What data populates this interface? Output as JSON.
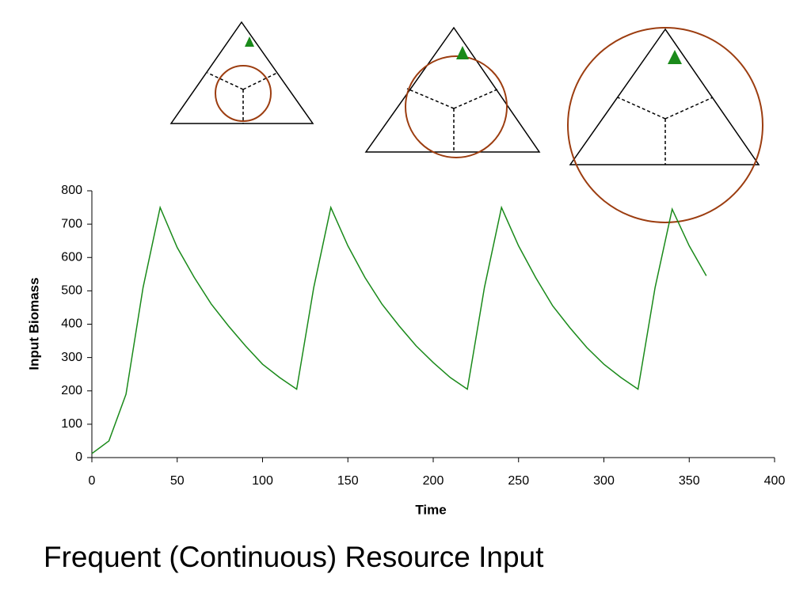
{
  "chart_data": {
    "type": "line",
    "title": "Frequent (Continuous) Resource Input",
    "x_label": "Time",
    "y_label": "Input Biomass",
    "x": [
      0,
      10,
      20,
      30,
      40,
      50,
      60,
      70,
      80,
      90,
      100,
      110,
      120,
      130,
      140,
      150,
      160,
      170,
      180,
      190,
      200,
      210,
      220,
      230,
      240,
      250,
      260,
      270,
      280,
      290,
      300,
      310,
      320,
      330,
      340,
      350,
      360
    ],
    "values": [
      12,
      50,
      190,
      510,
      750,
      630,
      540,
      460,
      395,
      335,
      280,
      240,
      205,
      510,
      750,
      635,
      540,
      460,
      395,
      335,
      285,
      240,
      205,
      510,
      750,
      635,
      540,
      455,
      390,
      330,
      280,
      240,
      205,
      510,
      745,
      635,
      545
    ],
    "color": "#1a8a1a",
    "xlim": [
      0,
      400
    ],
    "xticks": [
      0,
      50,
      100,
      150,
      200,
      250,
      300,
      350,
      400
    ],
    "ylim": [
      0,
      800
    ],
    "yticks": [
      0,
      100,
      200,
      300,
      400,
      500,
      600,
      700,
      800
    ]
  }
}
